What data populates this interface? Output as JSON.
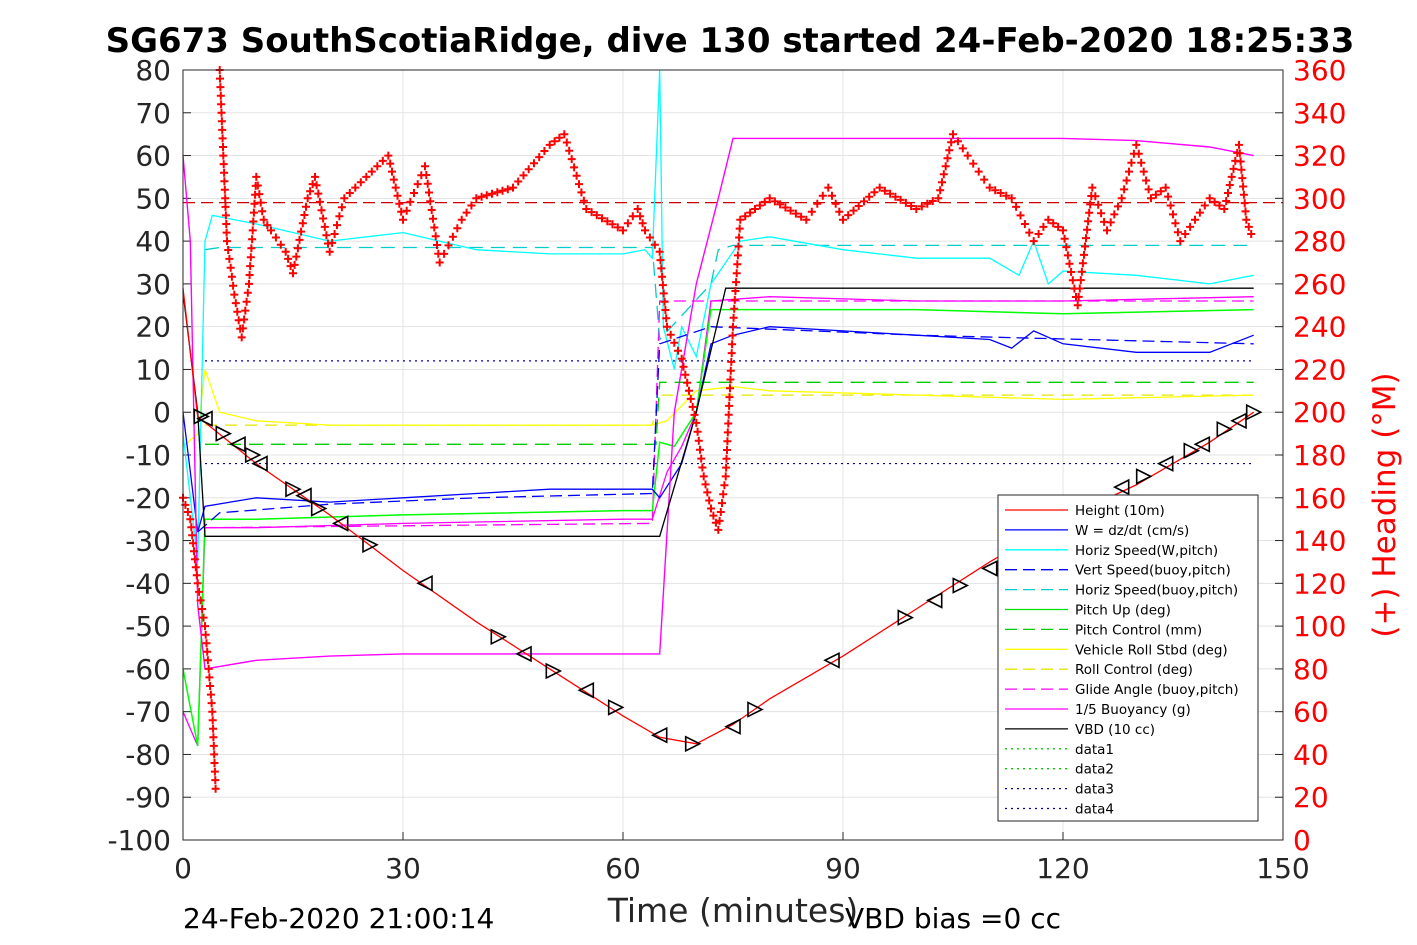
{
  "footer": {
    "timestamp": "24-Feb-2020 21:00:14",
    "vbd_bias": "VBD bias =0 cc"
  },
  "colors": {
    "height": "#ff0000",
    "w": "#0000ff",
    "horiz_w": "#00ffff",
    "vert_buoy": "#0000ff",
    "horiz_buoy": "#00cccc",
    "pitch_up": "#00ff00",
    "pitch_control": "#00cc00",
    "roll": "#ffff00",
    "roll_control": "#e6e600",
    "glide": "#ff00ff",
    "buoyancy": "#ff00ff",
    "vbd": "#000000",
    "heading": "#ff0000"
  },
  "chart_data": {
    "type": "line",
    "title": "SG673 SouthScotiaRidge, dive 130 started 24-Feb-2020 18:25:33",
    "xlabel": "Time (minutes)",
    "ylabel": "",
    "y2label": "(+) Heading (°M)",
    "xlim": [
      0,
      150
    ],
    "ylim": [
      -100,
      80
    ],
    "y2lim": [
      0,
      360
    ],
    "xticks": [
      "0",
      "30",
      "60",
      "90",
      "120",
      "150"
    ],
    "yticks": [
      "80",
      "70",
      "60",
      "50",
      "40",
      "30",
      "20",
      "10",
      "0",
      "-10",
      "-20",
      "-30",
      "-40",
      "-50",
      "-60",
      "-70",
      "-80",
      "-90",
      "-100"
    ],
    "y2ticks": [
      "360",
      "340",
      "320",
      "300",
      "280",
      "260",
      "240",
      "220",
      "200",
      "180",
      "160",
      "140",
      "120",
      "100",
      "80",
      "60",
      "40",
      "20",
      "0"
    ],
    "grid": true,
    "legend_position": "lower-right",
    "legend": [
      "Height (10m)",
      "W = dz/dt (cm/s)",
      "Horiz Speed(W,pitch)",
      "Vert Speed(buoy,pitch)",
      "Horiz Speed(buoy,pitch)",
      "Pitch Up (deg)",
      "Pitch Control (mm)",
      "Vehicle Roll Stbd (deg)",
      "Roll Control (deg)",
      "Glide Angle (buoy,pitch)",
      "1/5 Buoyancy (g)",
      "VBD (10 cc)",
      "data1",
      "data2",
      "data3",
      "data4"
    ],
    "height_points": [
      [
        0,
        29
      ],
      [
        2,
        -1
      ],
      [
        10,
        -12
      ],
      [
        20,
        -24
      ],
      [
        30,
        -37
      ],
      [
        40,
        -49
      ],
      [
        50,
        -60
      ],
      [
        60,
        -71
      ],
      [
        65,
        -76
      ],
      [
        70,
        -77.5
      ],
      [
        75,
        -73
      ],
      [
        80,
        -67
      ],
      [
        90,
        -57
      ],
      [
        100,
        -46
      ],
      [
        110,
        -35
      ],
      [
        120,
        -25
      ],
      [
        130,
        -17
      ],
      [
        140,
        -7
      ],
      [
        146,
        0
      ]
    ],
    "height_markers": [
      [
        2.5,
        -1
      ],
      [
        3,
        -1.5
      ],
      [
        5.5,
        -5
      ],
      [
        7.5,
        -7.5
      ],
      [
        9.5,
        -10
      ],
      [
        10.5,
        -12
      ],
      [
        15,
        -18
      ],
      [
        16.5,
        -19.5
      ],
      [
        18.5,
        -22.5
      ],
      [
        21.5,
        -26
      ],
      [
        25.5,
        -31
      ],
      [
        33,
        -40
      ],
      [
        43,
        -52.5
      ],
      [
        46.5,
        -56.5
      ],
      [
        50.5,
        -60.5
      ],
      [
        55,
        -65
      ],
      [
        59,
        -69
      ],
      [
        65,
        -75.5
      ],
      [
        69.5,
        -77.5
      ],
      [
        75,
        -73.5
      ],
      [
        78,
        -69.5
      ],
      [
        88.5,
        -58
      ],
      [
        98.5,
        -48
      ],
      [
        102.5,
        -44
      ],
      [
        106,
        -40.5
      ],
      [
        110,
        -36.5
      ],
      [
        120,
        -27
      ],
      [
        128,
        -17.5
      ],
      [
        131,
        -15
      ],
      [
        134,
        -12
      ],
      [
        137.5,
        -9
      ],
      [
        139,
        -7.5
      ],
      [
        142,
        -4
      ],
      [
        144,
        -2
      ],
      [
        146,
        0
      ]
    ],
    "w_points": [
      [
        0,
        0
      ],
      [
        2,
        -28
      ],
      [
        3,
        -22
      ],
      [
        10,
        -20
      ],
      [
        20,
        -21
      ],
      [
        30,
        -20
      ],
      [
        40,
        -19
      ],
      [
        50,
        -18
      ],
      [
        60,
        -18
      ],
      [
        64,
        -18
      ],
      [
        65,
        -20
      ],
      [
        68,
        -12
      ],
      [
        70,
        0
      ],
      [
        72,
        16
      ],
      [
        75,
        18
      ],
      [
        80,
        20
      ],
      [
        90,
        19
      ],
      [
        100,
        18
      ],
      [
        110,
        17
      ],
      [
        113,
        15
      ],
      [
        116,
        19
      ],
      [
        120,
        16
      ],
      [
        130,
        14
      ],
      [
        140,
        14
      ],
      [
        146,
        18
      ]
    ],
    "w_buoy_const": [
      [
        2,
        -28
      ],
      [
        5,
        -23.5
      ],
      [
        20,
        -21.5
      ],
      [
        40,
        -20
      ],
      [
        64,
        -19
      ],
      [
        65,
        16
      ],
      [
        72,
        20
      ],
      [
        100,
        18
      ],
      [
        146,
        16
      ]
    ],
    "horiz_w_points": [
      [
        0,
        -5
      ],
      [
        2,
        -35
      ],
      [
        3,
        40
      ],
      [
        4,
        46
      ],
      [
        10,
        44
      ],
      [
        20,
        40
      ],
      [
        30,
        42
      ],
      [
        40,
        38
      ],
      [
        50,
        37
      ],
      [
        60,
        37
      ],
      [
        63,
        38
      ],
      [
        64,
        36
      ],
      [
        65,
        80
      ],
      [
        65.5,
        20
      ],
      [
        67,
        10
      ],
      [
        68,
        20
      ],
      [
        70,
        13
      ],
      [
        72,
        30
      ],
      [
        74,
        35
      ],
      [
        76,
        40
      ],
      [
        80,
        41
      ],
      [
        90,
        38
      ],
      [
        100,
        36
      ],
      [
        110,
        36
      ],
      [
        114,
        32
      ],
      [
        116,
        40
      ],
      [
        118,
        30
      ],
      [
        120,
        33
      ],
      [
        130,
        32
      ],
      [
        140,
        30
      ],
      [
        146,
        32
      ]
    ],
    "horiz_buoy_points": [
      [
        3,
        38
      ],
      [
        5,
        38.5
      ],
      [
        64,
        38.5
      ],
      [
        65,
        17
      ],
      [
        72,
        30
      ],
      [
        73,
        38
      ],
      [
        75,
        39
      ],
      [
        146,
        39
      ]
    ],
    "pitch_up_points": [
      [
        0,
        -60
      ],
      [
        2,
        -78
      ],
      [
        3,
        -25
      ],
      [
        10,
        -25
      ],
      [
        30,
        -24
      ],
      [
        60,
        -23
      ],
      [
        64,
        -23
      ],
      [
        65,
        -7
      ],
      [
        67,
        -8
      ],
      [
        70,
        0
      ],
      [
        72,
        24
      ],
      [
        80,
        24
      ],
      [
        100,
        24
      ],
      [
        120,
        23
      ],
      [
        146,
        24
      ]
    ],
    "pitch_control_points": [
      [
        3,
        -7.5
      ],
      [
        5,
        -7.5
      ],
      [
        64,
        -7.5
      ],
      [
        64.5,
        -7.5
      ],
      [
        65,
        7
      ],
      [
        72,
        7
      ],
      [
        146,
        7
      ]
    ],
    "roll_points": [
      [
        0,
        -8
      ],
      [
        2,
        -5
      ],
      [
        3,
        10
      ],
      [
        5,
        0
      ],
      [
        10,
        -2
      ],
      [
        20,
        -3
      ],
      [
        30,
        -3
      ],
      [
        40,
        -3
      ],
      [
        50,
        -3
      ],
      [
        60,
        -3
      ],
      [
        64,
        -3
      ],
      [
        66,
        -2
      ],
      [
        70,
        5
      ],
      [
        75,
        6
      ],
      [
        80,
        5
      ],
      [
        100,
        4
      ],
      [
        120,
        3
      ],
      [
        146,
        4
      ]
    ],
    "roll_control_points": [
      [
        3,
        -3
      ],
      [
        64,
        -3
      ],
      [
        65,
        4
      ],
      [
        146,
        4
      ]
    ],
    "glide_points": [
      [
        0,
        -70
      ],
      [
        2,
        -78
      ],
      [
        3,
        -27
      ],
      [
        10,
        -27
      ],
      [
        30,
        -26
      ],
      [
        60,
        -25
      ],
      [
        64,
        -25
      ],
      [
        66,
        -14
      ],
      [
        68,
        -8
      ],
      [
        70,
        0
      ],
      [
        72,
        26
      ],
      [
        80,
        27
      ],
      [
        100,
        26
      ],
      [
        120,
        26
      ],
      [
        146,
        27
      ]
    ],
    "glide_const_points": [
      [
        3,
        -27
      ],
      [
        64,
        -26
      ],
      [
        65,
        26
      ],
      [
        146,
        26
      ]
    ],
    "buoyancy_points": [
      [
        0,
        60
      ],
      [
        1,
        40
      ],
      [
        2,
        -45
      ],
      [
        3,
        -60
      ],
      [
        10,
        -58
      ],
      [
        20,
        -57
      ],
      [
        30,
        -56.5
      ],
      [
        40,
        -56.5
      ],
      [
        50,
        -56.5
      ],
      [
        60,
        -56.5
      ],
      [
        65,
        -56.5
      ],
      [
        67,
        0
      ],
      [
        70,
        30
      ],
      [
        73,
        50
      ],
      [
        75,
        64
      ],
      [
        90,
        64
      ],
      [
        100,
        64
      ],
      [
        110,
        64
      ],
      [
        120,
        64
      ],
      [
        130,
        63.5
      ],
      [
        140,
        62
      ],
      [
        146,
        60
      ]
    ],
    "vbd_points": [
      [
        0,
        28
      ],
      [
        2,
        0
      ],
      [
        3,
        -29
      ],
      [
        10,
        -29
      ],
      [
        30,
        -29
      ],
      [
        60,
        -29
      ],
      [
        65,
        -29
      ],
      [
        70,
        0
      ],
      [
        74,
        29
      ],
      [
        100,
        29
      ],
      [
        146,
        29
      ]
    ],
    "data3_levels": [
      12,
      -12
    ],
    "heading_ref": 298,
    "heading_points": [
      [
        0,
        160
      ],
      [
        1,
        150
      ],
      [
        2,
        120
      ],
      [
        3,
        100
      ],
      [
        4,
        60
      ],
      [
        4.5,
        20
      ],
      [
        5,
        360
      ],
      [
        5.5,
        320
      ],
      [
        6,
        280
      ],
      [
        7,
        255
      ],
      [
        8,
        235
      ],
      [
        9,
        260
      ],
      [
        10,
        310
      ],
      [
        11,
        290
      ],
      [
        12,
        285
      ],
      [
        14,
        275
      ],
      [
        15,
        265
      ],
      [
        17,
        300
      ],
      [
        18,
        310
      ],
      [
        20,
        275
      ],
      [
        22,
        300
      ],
      [
        25,
        310
      ],
      [
        28,
        320
      ],
      [
        30,
        290
      ],
      [
        33,
        315
      ],
      [
        35,
        270
      ],
      [
        38,
        290
      ],
      [
        40,
        300
      ],
      [
        45,
        305
      ],
      [
        50,
        325
      ],
      [
        52,
        330
      ],
      [
        55,
        295
      ],
      [
        60,
        285
      ],
      [
        62,
        295
      ],
      [
        63,
        285
      ],
      [
        65,
        275
      ],
      [
        66,
        240
      ],
      [
        68,
        225
      ],
      [
        70,
        195
      ],
      [
        71,
        170
      ],
      [
        72,
        155
      ],
      [
        73,
        145
      ],
      [
        74,
        170
      ],
      [
        75,
        240
      ],
      [
        76,
        290
      ],
      [
        78,
        295
      ],
      [
        80,
        300
      ],
      [
        85,
        290
      ],
      [
        88,
        305
      ],
      [
        90,
        290
      ],
      [
        95,
        305
      ],
      [
        100,
        295
      ],
      [
        103,
        300
      ],
      [
        105,
        330
      ],
      [
        107,
        320
      ],
      [
        110,
        305
      ],
      [
        113,
        300
      ],
      [
        116,
        280
      ],
      [
        118,
        290
      ],
      [
        120,
        285
      ],
      [
        122,
        250
      ],
      [
        124,
        305
      ],
      [
        126,
        285
      ],
      [
        128,
        300
      ],
      [
        130,
        325
      ],
      [
        132,
        300
      ],
      [
        134,
        305
      ],
      [
        136,
        280
      ],
      [
        138,
        290
      ],
      [
        140,
        300
      ],
      [
        142,
        295
      ],
      [
        144,
        325
      ],
      [
        145,
        290
      ],
      [
        146,
        280
      ]
    ]
  }
}
